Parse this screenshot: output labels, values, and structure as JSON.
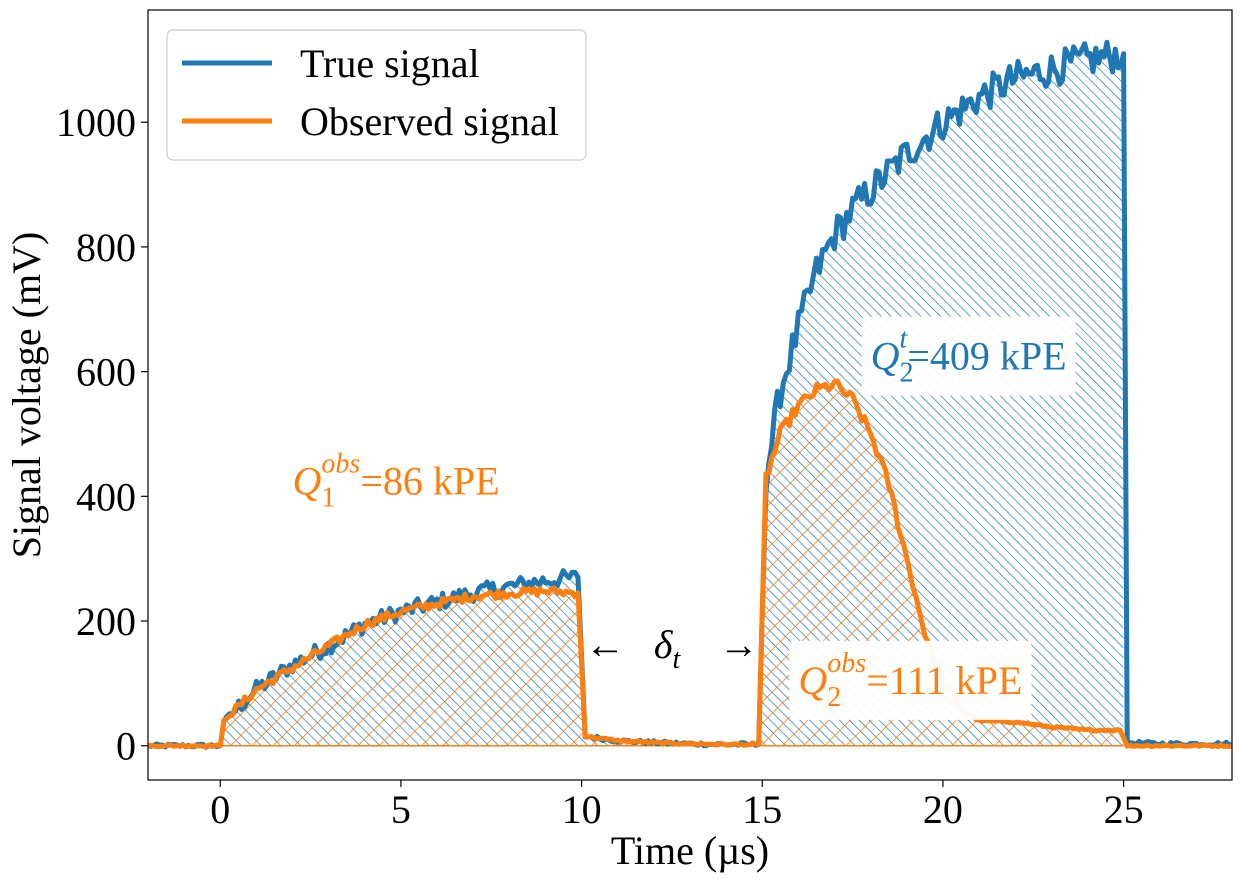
{
  "chart_data": {
    "type": "line",
    "title": "",
    "xlabel": "Time (µs)",
    "ylabel": "Signal voltage (mV)",
    "xlim": [
      -2,
      28
    ],
    "ylim": [
      -55,
      1180
    ],
    "x_ticks": [
      0,
      5,
      10,
      15,
      20,
      25
    ],
    "y_ticks": [
      0,
      200,
      400,
      600,
      800,
      1000
    ],
    "x_tick_labels": [
      "0",
      "5",
      "10",
      "15",
      "20",
      "25"
    ],
    "y_tick_labels": [
      "0",
      "200",
      "400",
      "600",
      "800",
      "1000"
    ],
    "grid": false,
    "legend_position": "top-left",
    "series": [
      {
        "name": "True signal",
        "color": "#1f77b4",
        "x": [
          -2,
          0,
          0.1,
          1,
          2,
          3,
          4,
          5,
          6,
          7,
          8,
          9,
          9.9,
          10.1,
          11,
          12,
          13,
          14,
          14.9,
          15.1,
          15.5,
          16,
          16.5,
          17,
          17.5,
          18,
          19,
          20,
          21,
          22,
          23,
          24,
          25,
          25.1,
          26,
          27,
          28
        ],
        "values": [
          0,
          0,
          40,
          90,
          130,
          160,
          195,
          215,
          230,
          245,
          255,
          265,
          270,
          15,
          8,
          5,
          3,
          2,
          2,
          430,
          570,
          670,
          760,
          820,
          860,
          890,
          950,
          1000,
          1040,
          1070,
          1085,
          1100,
          1110,
          5,
          3,
          3,
          3
        ]
      },
      {
        "name": "Observed signal",
        "color": "#ff7f0e",
        "x": [
          -2,
          0,
          0.1,
          1,
          2,
          3,
          4,
          5,
          6,
          7,
          8,
          9,
          9.9,
          10.1,
          11,
          12,
          13,
          14,
          14.9,
          15.1,
          15.5,
          16,
          16.5,
          17,
          17.5,
          18,
          18.5,
          19,
          19.5,
          20,
          20.5,
          21,
          22,
          23,
          24,
          24.9,
          25.1,
          26,
          27,
          28
        ],
        "values": [
          0,
          0,
          40,
          90,
          125,
          160,
          195,
          215,
          228,
          240,
          245,
          248,
          245,
          15,
          8,
          5,
          3,
          2,
          2,
          430,
          500,
          545,
          570,
          580,
          555,
          500,
          420,
          300,
          180,
          100,
          60,
          40,
          38,
          30,
          25,
          25,
          0,
          0,
          0,
          0
        ]
      }
    ],
    "annotations": {
      "q1_obs": {
        "base": "Q",
        "sub": "1",
        "sup": "obs",
        "text": "=86 kPE",
        "x": 2,
        "y": 400,
        "color": "#ff7f0e"
      },
      "q2_true": {
        "base": "Q",
        "sub": "2",
        "sup": "t",
        "text": "=409 kPE",
        "x": 18,
        "y": 600,
        "color": "#1f77b4"
      },
      "q2_obs": {
        "base": "Q",
        "sub": "2",
        "sup": "obs",
        "text": "=111 kPE",
        "x": 16,
        "y": 80,
        "color": "#ff7f0e"
      },
      "delta": {
        "left_arrow": "←",
        "base": "δ",
        "sub": "t",
        "right_arrow": "→",
        "y": 165
      }
    }
  }
}
